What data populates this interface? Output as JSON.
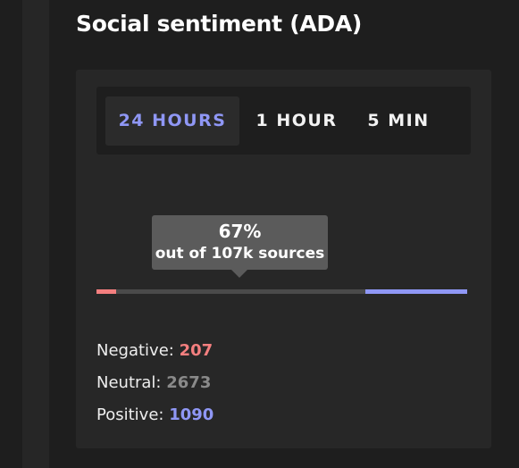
{
  "header": {
    "title": "Social sentiment (ADA)"
  },
  "tabs": [
    {
      "label": "24 HOURS",
      "active": true
    },
    {
      "label": "1 HOUR",
      "active": false
    },
    {
      "label": "5 MIN",
      "active": false
    }
  ],
  "tooltip": {
    "percent": "67%",
    "caption": "out of 107k sources"
  },
  "breakdown": [
    {
      "label": "Negative:",
      "count": 207,
      "color": "#f47f7f",
      "bar_color": "#f47f7f"
    },
    {
      "label": "Neutral:",
      "count": 2673,
      "color": "#8a8a8a",
      "bar_color": "#4a4a4a"
    },
    {
      "label": "Positive:",
      "count": 1090,
      "color": "#8f97f5",
      "bar_color": "#8f97f5"
    }
  ]
}
